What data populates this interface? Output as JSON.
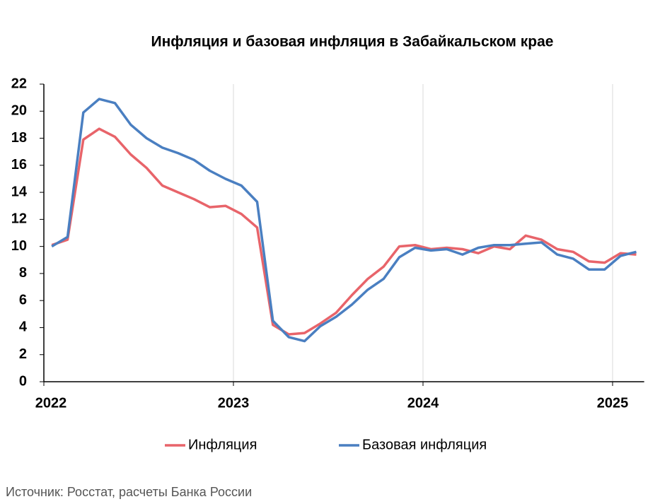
{
  "chart_data": {
    "type": "line",
    "title": "Инфляция и базовая инфляция в Забайкальском крае",
    "source": "Источник: Росстат, расчеты Банка России",
    "categories": [
      null,
      null,
      null,
      null,
      null,
      null,
      null,
      null,
      null,
      null,
      null,
      null,
      null,
      null,
      null,
      null,
      null,
      null,
      null,
      null,
      null,
      null,
      null,
      null,
      null,
      null,
      null,
      null,
      null,
      null,
      null,
      null,
      null,
      null,
      null,
      null,
      null,
      null
    ],
    "series": [
      {
        "name": "Инфляция",
        "color": "#e8646a",
        "values": [
          10.1,
          10.5,
          17.9,
          18.7,
          18.1,
          16.8,
          15.8,
          14.5,
          14.0,
          13.5,
          12.9,
          13.0,
          12.4,
          11.4,
          4.2,
          3.5,
          3.6,
          4.3,
          5.1,
          6.4,
          7.6,
          8.5,
          10.0,
          10.1,
          9.8,
          9.9,
          9.8,
          9.5,
          10.0,
          9.8,
          10.8,
          10.5,
          9.8,
          9.6,
          8.9,
          8.8,
          9.5,
          9.4
        ]
      },
      {
        "name": "Базовая инфляция",
        "color": "#4a7fc1",
        "values": [
          10.0,
          10.7,
          19.9,
          20.9,
          20.6,
          19.0,
          18.0,
          17.3,
          16.9,
          16.4,
          15.6,
          15.0,
          14.5,
          13.3,
          4.5,
          3.3,
          3.0,
          4.1,
          4.8,
          5.7,
          6.8,
          7.6,
          9.2,
          9.9,
          9.7,
          9.8,
          9.4,
          9.9,
          10.1,
          10.1,
          10.2,
          10.3,
          9.4,
          9.1,
          8.3,
          8.3,
          9.3,
          9.6
        ]
      }
    ],
    "xticks": [
      2022,
      2023,
      2024,
      2025
    ],
    "ylim": [
      0,
      22
    ],
    "yticks": [
      0,
      2,
      4,
      6,
      8,
      10,
      12,
      14,
      16,
      18,
      20,
      22
    ],
    "grid": true
  }
}
